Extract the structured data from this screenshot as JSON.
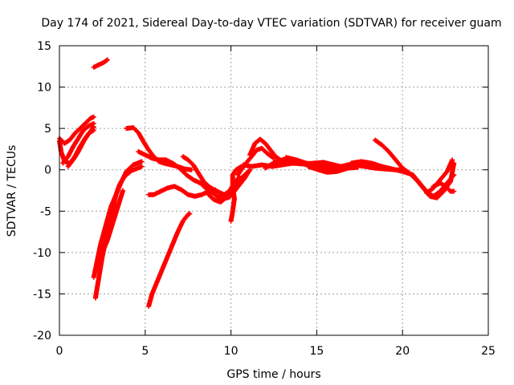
{
  "chart_data": {
    "type": "scatter",
    "title": "Day 174 of 2021, Sidereal Day-to-day VTEC variation (SDTVAR) for receiver guam",
    "xlabel": "GPS time / hours",
    "ylabel": "SDTVAR / TECUs",
    "xlim": [
      0,
      25
    ],
    "ylim": [
      -20,
      15
    ],
    "xticks": [
      0,
      5,
      10,
      15,
      20,
      25
    ],
    "yticks": [
      -20,
      -15,
      -10,
      -5,
      0,
      5,
      10,
      15
    ],
    "xtick_labels": [
      "0",
      "5",
      "10",
      "15",
      "20",
      "25"
    ],
    "ytick_labels": [
      "-20",
      "-15",
      "-10",
      "-5",
      "0",
      "5",
      "10",
      "15"
    ],
    "grid": true,
    "marker": "+",
    "color": "#ff0000",
    "tracks": [
      [
        [
          0.0,
          3.8
        ],
        [
          0.3,
          3.2
        ],
        [
          0.6,
          3.6
        ],
        [
          0.9,
          4.4
        ],
        [
          1.2,
          5.0
        ],
        [
          1.5,
          5.6
        ],
        [
          1.8,
          6.2
        ],
        [
          2.0,
          6.4
        ]
      ],
      [
        [
          0.0,
          3.5
        ],
        [
          0.1,
          2.2
        ],
        [
          0.3,
          1.0
        ],
        [
          0.6,
          0.8
        ],
        [
          0.9,
          1.6
        ],
        [
          1.2,
          2.8
        ],
        [
          1.5,
          3.8
        ],
        [
          1.8,
          4.6
        ],
        [
          2.0,
          5.2
        ]
      ],
      [
        [
          0.2,
          0.8
        ],
        [
          0.5,
          1.6
        ],
        [
          0.8,
          2.8
        ],
        [
          1.1,
          3.8
        ],
        [
          1.4,
          4.8
        ],
        [
          1.7,
          5.3
        ],
        [
          2.0,
          5.6
        ]
      ],
      [
        [
          0.5,
          0.4
        ],
        [
          0.8,
          1.2
        ],
        [
          1.1,
          2.2
        ],
        [
          1.4,
          3.4
        ],
        [
          1.7,
          4.4
        ],
        [
          2.0,
          4.8
        ]
      ],
      [
        [
          2.0,
          12.4
        ],
        [
          2.3,
          12.7
        ],
        [
          2.6,
          13.0
        ],
        [
          2.8,
          13.3
        ]
      ],
      [
        [
          2.1,
          -15.5
        ],
        [
          2.3,
          -13.0
        ],
        [
          2.5,
          -10.5
        ],
        [
          2.7,
          -8.5
        ],
        [
          2.9,
          -6.5
        ],
        [
          3.1,
          -4.8
        ],
        [
          3.3,
          -3.0
        ],
        [
          3.5,
          -1.8
        ],
        [
          3.8,
          -0.8
        ],
        [
          4.2,
          -0.1
        ],
        [
          4.8,
          0.4
        ]
      ],
      [
        [
          2.0,
          -13.0
        ],
        [
          2.2,
          -11.0
        ],
        [
          2.4,
          -9.0
        ],
        [
          2.6,
          -7.5
        ],
        [
          2.8,
          -6.0
        ],
        [
          3.0,
          -4.5
        ],
        [
          3.3,
          -3.0
        ],
        [
          3.6,
          -1.5
        ],
        [
          3.9,
          -0.2
        ],
        [
          4.3,
          0.6
        ],
        [
          4.8,
          1.0
        ]
      ],
      [
        [
          2.2,
          -12.0
        ],
        [
          2.5,
          -10.0
        ],
        [
          2.8,
          -8.5
        ],
        [
          3.1,
          -6.5
        ],
        [
          3.4,
          -4.5
        ],
        [
          3.7,
          -2.5
        ]
      ],
      [
        [
          3.9,
          5.0
        ],
        [
          4.3,
          5.1
        ],
        [
          4.6,
          4.5
        ],
        [
          4.9,
          3.4
        ],
        [
          5.2,
          2.4
        ],
        [
          5.5,
          1.6
        ],
        [
          5.8,
          1.0
        ],
        [
          6.1,
          0.8
        ],
        [
          6.5,
          0.6
        ],
        [
          6.9,
          0.4
        ],
        [
          7.3,
          0.1
        ],
        [
          7.7,
          0.0
        ]
      ],
      [
        [
          4.6,
          2.2
        ],
        [
          5.0,
          1.8
        ],
        [
          5.4,
          1.4
        ],
        [
          5.8,
          1.2
        ],
        [
          6.2,
          1.2
        ],
        [
          6.6,
          0.8
        ],
        [
          7.0,
          0.2
        ],
        [
          7.4,
          -0.6
        ],
        [
          7.8,
          -1.2
        ],
        [
          8.2,
          -1.6
        ],
        [
          8.6,
          -2.0
        ],
        [
          9.0,
          -2.4
        ]
      ],
      [
        [
          5.2,
          -16.5
        ],
        [
          5.4,
          -15.0
        ],
        [
          5.7,
          -13.5
        ],
        [
          6.0,
          -12.0
        ],
        [
          6.3,
          -10.5
        ],
        [
          6.6,
          -9.0
        ],
        [
          6.9,
          -7.5
        ],
        [
          7.2,
          -6.2
        ],
        [
          7.5,
          -5.4
        ],
        [
          7.6,
          -5.3
        ]
      ],
      [
        [
          5.2,
          -3.0
        ],
        [
          5.5,
          -3.0
        ],
        [
          5.9,
          -2.6
        ],
        [
          6.3,
          -2.2
        ],
        [
          6.7,
          -2.0
        ],
        [
          7.1,
          -2.4
        ],
        [
          7.5,
          -3.0
        ],
        [
          7.9,
          -3.2
        ],
        [
          8.3,
          -3.0
        ],
        [
          8.7,
          -2.6
        ],
        [
          9.1,
          -2.4
        ]
      ],
      [
        [
          7.2,
          1.6
        ],
        [
          7.5,
          1.2
        ],
        [
          7.8,
          0.6
        ],
        [
          8.1,
          -0.4
        ],
        [
          8.4,
          -1.4
        ],
        [
          8.7,
          -2.0
        ],
        [
          9.0,
          -2.4
        ],
        [
          9.3,
          -2.7
        ],
        [
          9.6,
          -3.0
        ],
        [
          9.9,
          -2.6
        ],
        [
          10.2,
          -1.6
        ],
        [
          10.5,
          -0.8
        ]
      ],
      [
        [
          8.4,
          -2.0
        ],
        [
          8.8,
          -2.6
        ],
        [
          9.2,
          -3.2
        ],
        [
          9.6,
          -3.5
        ],
        [
          9.9,
          -3.3
        ],
        [
          10.2,
          -2.6
        ],
        [
          10.5,
          -1.8
        ],
        [
          10.8,
          -1.0
        ],
        [
          11.1,
          0.0
        ]
      ],
      [
        [
          8.6,
          -2.8
        ],
        [
          9.0,
          -3.6
        ],
        [
          9.4,
          -3.9
        ],
        [
          9.8,
          -3.2
        ],
        [
          10.2,
          -2.0
        ],
        [
          10.6,
          -1.0
        ],
        [
          11.0,
          -0.2
        ]
      ],
      [
        [
          10.0,
          -6.2
        ],
        [
          10.1,
          -5.0
        ],
        [
          10.2,
          -3.5
        ],
        [
          10.1,
          -2.0
        ],
        [
          10.1,
          -0.6
        ],
        [
          10.3,
          0.0
        ],
        [
          10.6,
          0.4
        ]
      ],
      [
        [
          10.4,
          -0.6
        ],
        [
          10.8,
          0.6
        ],
        [
          11.2,
          1.6
        ],
        [
          11.5,
          2.4
        ],
        [
          11.8,
          2.6
        ],
        [
          12.1,
          2.0
        ],
        [
          12.5,
          1.4
        ]
      ],
      [
        [
          11.1,
          1.8
        ],
        [
          11.4,
          3.2
        ],
        [
          11.7,
          3.7
        ],
        [
          12.0,
          3.2
        ],
        [
          12.3,
          2.4
        ],
        [
          12.6,
          1.6
        ],
        [
          13.0,
          1.0
        ],
        [
          13.4,
          0.8
        ]
      ],
      [
        [
          10.7,
          0.6
        ],
        [
          11.2,
          0.4
        ],
        [
          11.8,
          0.6
        ],
        [
          12.4,
          0.4
        ],
        [
          13.0,
          0.6
        ],
        [
          13.6,
          0.8
        ],
        [
          14.2,
          0.7
        ],
        [
          14.8,
          0.8
        ],
        [
          15.4,
          0.9
        ],
        [
          16.0,
          0.6
        ],
        [
          16.6,
          0.3
        ],
        [
          17.2,
          0.6
        ],
        [
          17.8,
          0.4
        ],
        [
          18.4,
          0.2
        ],
        [
          19.0,
          0.1
        ],
        [
          19.6,
          0.0
        ],
        [
          20.0,
          0.0
        ]
      ],
      [
        [
          12.0,
          0.2
        ],
        [
          12.6,
          1.0
        ],
        [
          13.2,
          1.3
        ],
        [
          13.8,
          1.0
        ],
        [
          14.4,
          0.6
        ],
        [
          15.0,
          0.3
        ],
        [
          15.6,
          0.1
        ],
        [
          16.2,
          -0.1
        ],
        [
          16.6,
          0.1
        ]
      ],
      [
        [
          13.2,
          1.5
        ],
        [
          13.8,
          1.2
        ],
        [
          14.4,
          0.8
        ],
        [
          15.0,
          0.6
        ],
        [
          15.6,
          0.4
        ],
        [
          16.2,
          0.3
        ],
        [
          16.8,
          0.6
        ],
        [
          17.4,
          0.8
        ],
        [
          18.0,
          0.7
        ],
        [
          18.6,
          0.3
        ],
        [
          19.2,
          0.2
        ]
      ],
      [
        [
          14.5,
          0.4
        ],
        [
          15.1,
          0.0
        ],
        [
          15.6,
          -0.3
        ],
        [
          16.2,
          -0.2
        ],
        [
          16.8,
          0.2
        ],
        [
          17.4,
          0.3
        ]
      ],
      [
        [
          17.0,
          0.8
        ],
        [
          17.6,
          1.0
        ],
        [
          18.2,
          0.8
        ],
        [
          18.8,
          0.4
        ],
        [
          19.4,
          0.1
        ],
        [
          20.0,
          -0.2
        ],
        [
          20.6,
          -0.6
        ],
        [
          21.0,
          -1.6
        ],
        [
          21.4,
          -2.6
        ],
        [
          21.8,
          -3.2
        ],
        [
          22.2,
          -2.6
        ],
        [
          22.6,
          -1.6
        ],
        [
          23.0,
          -0.6
        ]
      ],
      [
        [
          18.4,
          3.6
        ],
        [
          18.8,
          3.0
        ],
        [
          19.2,
          2.2
        ],
        [
          19.6,
          1.2
        ],
        [
          20.0,
          0.2
        ],
        [
          20.4,
          -0.4
        ],
        [
          20.8,
          -1.2
        ],
        [
          21.2,
          -2.2
        ],
        [
          21.6,
          -3.2
        ],
        [
          22.0,
          -3.4
        ],
        [
          22.4,
          -2.6
        ],
        [
          22.8,
          -1.4
        ],
        [
          23.0,
          0.8
        ]
      ],
      [
        [
          21.8,
          -2.0
        ],
        [
          22.2,
          -1.6
        ],
        [
          22.5,
          -2.0
        ],
        [
          22.8,
          -2.6
        ],
        [
          23.0,
          -2.6
        ]
      ],
      [
        [
          21.4,
          -2.8
        ],
        [
          21.8,
          -2.2
        ],
        [
          22.2,
          -1.2
        ],
        [
          22.6,
          -0.2
        ],
        [
          22.9,
          1.2
        ]
      ]
    ]
  }
}
